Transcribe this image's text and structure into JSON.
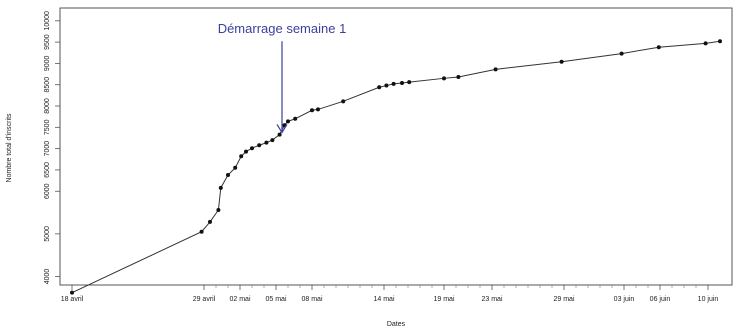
{
  "chart_data": {
    "type": "line",
    "title": "",
    "xlabel": "Dates",
    "ylabel": "Nombre total d'inscrits",
    "x_tick_labels": [
      "18 avril",
      "29 avril",
      "02 mai",
      "05 mai",
      "08 mai",
      "14 mai",
      "19 mai",
      "23 mai",
      "29 mai",
      "03 juin",
      "06 juin",
      "10 juin"
    ],
    "x_tick_days": [
      0,
      11,
      14,
      17,
      20,
      26,
      31,
      35,
      41,
      46,
      49,
      53
    ],
    "xlim": [
      -1,
      55
    ],
    "y_ticks": [
      4000,
      5000,
      6000,
      6500,
      7000,
      7500,
      8000,
      8500,
      9000,
      9500,
      10000
    ],
    "y_tick_labels": [
      "4000",
      "5000",
      "6000",
      "6500",
      "7000",
      "7500",
      "8000",
      "8500",
      "9000",
      "9500",
      "10000"
    ],
    "ylim": [
      3800,
      10300
    ],
    "minor_tick_days": [
      12,
      13,
      15,
      16,
      18,
      19,
      21,
      22,
      23,
      24,
      25,
      27,
      28,
      29,
      30,
      32,
      33,
      34,
      36,
      37,
      38,
      39,
      40,
      42,
      43,
      44,
      45,
      47,
      48,
      50,
      51,
      52
    ],
    "series": [
      {
        "x": [
          "18 avril",
          "29 avril",
          "30 avril",
          "01 mai",
          "01 mai",
          "02 mai",
          "02 mai",
          "03 mai",
          "03 mai",
          "04 mai",
          "04 mai",
          "05 mai",
          "05 mai",
          "06 mai",
          "06 mai",
          "06 mai",
          "07 mai",
          "08 mai",
          "09 mai",
          "11 mai",
          "14 mai",
          "14 mai",
          "15 mai",
          "15 mai",
          "16 mai",
          "19 mai",
          "20 mai",
          "23 mai",
          "29 mai",
          "03 juin",
          "06 juin",
          "10 juin",
          "11 juin"
        ],
        "x_days": [
          0,
          10.8,
          11.5,
          12.2,
          12.4,
          13.0,
          13.6,
          14.1,
          14.5,
          15.0,
          15.6,
          16.2,
          16.7,
          17.3,
          17.7,
          18.0,
          18.6,
          20.0,
          20.5,
          22.6,
          25.6,
          26.2,
          26.8,
          27.5,
          28.1,
          31.0,
          32.2,
          35.3,
          40.8,
          45.8,
          48.9,
          52.8,
          54.0
        ],
        "y": [
          3620,
          5050,
          5280,
          5560,
          6080,
          6380,
          6550,
          6820,
          6930,
          7010,
          7080,
          7140,
          7200,
          7330,
          7550,
          7640,
          7700,
          7900,
          7920,
          8110,
          8440,
          8480,
          8520,
          8540,
          8560,
          8650,
          8680,
          8860,
          9040,
          9230,
          9380,
          9470,
          9520
        ]
      }
    ],
    "annotation": {
      "text": "Démarrage semaine 1",
      "x_day": 17.5,
      "y_from": 9520,
      "y_to": 7380,
      "color": "#3a3f9e"
    },
    "line_color": "#333333",
    "point_color": "#111111",
    "grid": false,
    "legend": "none"
  }
}
